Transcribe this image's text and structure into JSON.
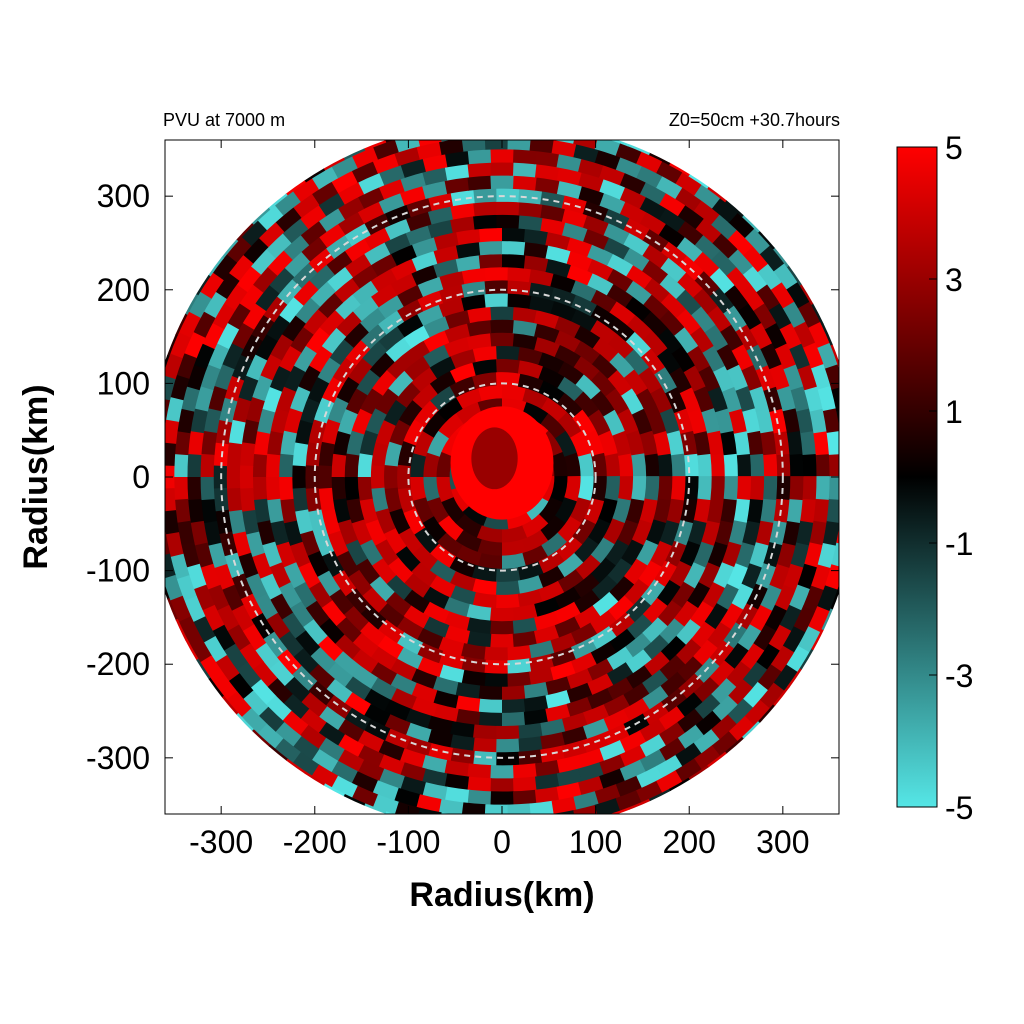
{
  "chart_data": {
    "type": "heatmap",
    "title_left": "PVU at  7000 m",
    "title_right": "Z0=50cm  +30.7hours",
    "xlabel": "Radius(km)",
    "ylabel": "Radius(km)",
    "xlim": [
      -360,
      360
    ],
    "ylim": [
      -360,
      360
    ],
    "xticks": [
      -300,
      -200,
      -100,
      0,
      100,
      200,
      300
    ],
    "yticks": [
      300,
      200,
      100,
      0,
      -100,
      -200,
      -300
    ],
    "domain_radius_km": 380,
    "reference_circles_km": [
      100,
      200,
      300
    ],
    "colorbar": {
      "range": [
        -5,
        5
      ],
      "ticks": [
        5,
        3,
        1,
        -1,
        -3,
        -5
      ],
      "colors": [
        "#55e6e6",
        "#000000",
        "#ff0000"
      ]
    },
    "core": {
      "center_km": [
        0,
        15
      ],
      "radius_km": 55,
      "value": 5
    }
  }
}
